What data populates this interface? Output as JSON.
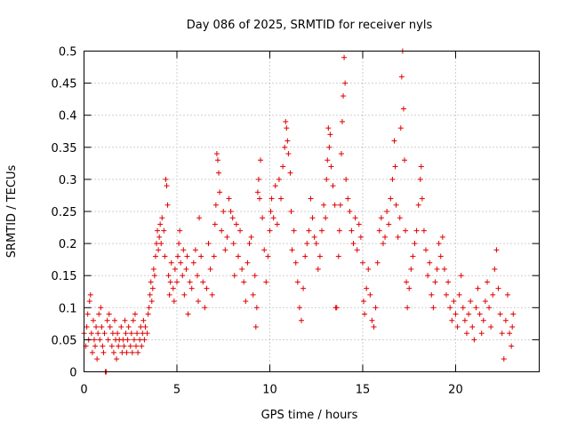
{
  "chart_data": {
    "type": "scatter",
    "title": "Day 086 of 2025, SRMTID for receiver nyls",
    "xlabel": "GPS time / hours",
    "ylabel": "SRMTID / TECUs",
    "xlim": [
      0,
      24.5
    ],
    "ylim": [
      0,
      0.5
    ],
    "xticks": [
      0,
      5,
      10,
      15,
      20
    ],
    "yticks": [
      0,
      0.05,
      0.1,
      0.15,
      0.2,
      0.25,
      0.3,
      0.35,
      0.4,
      0.45,
      0.5
    ],
    "xtick_labels": [
      "0",
      "5",
      "10",
      "15",
      "20"
    ],
    "ytick_labels": [
      "0",
      "0.05",
      "0.1",
      "0.15",
      "0.2",
      "0.25",
      "0.3",
      "0.35",
      "0.4",
      "0.45",
      "0.5"
    ],
    "grid": true,
    "marker": "+",
    "colors": {
      "points": "#e00000",
      "grid": "#a0a0a0",
      "axis": "#000000"
    },
    "series": [
      {
        "name": "SRMTID",
        "points": [
          [
            0.0,
            0.06
          ],
          [
            0.1,
            0.04
          ],
          [
            0.15,
            0.07
          ],
          [
            0.2,
            0.09
          ],
          [
            0.25,
            0.05
          ],
          [
            0.3,
            0.11
          ],
          [
            0.35,
            0.12
          ],
          [
            0.4,
            0.06
          ],
          [
            0.45,
            0.03
          ],
          [
            0.5,
            0.08
          ],
          [
            0.55,
            0.05
          ],
          [
            0.6,
            0.04
          ],
          [
            0.65,
            0.07
          ],
          [
            0.7,
            0.02
          ],
          [
            0.75,
            0.06
          ],
          [
            0.8,
            0.09
          ],
          [
            0.85,
            0.05
          ],
          [
            0.9,
            0.1
          ],
          [
            0.95,
            0.07
          ],
          [
            1.0,
            0.04
          ],
          [
            1.05,
            0.03
          ],
          [
            1.1,
            0.06
          ],
          [
            1.15,
            0.0
          ],
          [
            1.2,
            0.0
          ],
          [
            1.25,
            0.08
          ],
          [
            1.3,
            0.05
          ],
          [
            1.35,
            0.09
          ],
          [
            1.4,
            0.07
          ],
          [
            1.5,
            0.04
          ],
          [
            1.55,
            0.06
          ],
          [
            1.6,
            0.03
          ],
          [
            1.65,
            0.08
          ],
          [
            1.7,
            0.05
          ],
          [
            1.75,
            0.02
          ],
          [
            1.8,
            0.06
          ],
          [
            1.85,
            0.04
          ],
          [
            1.9,
            0.05
          ],
          [
            2.0,
            0.07
          ],
          [
            2.05,
            0.03
          ],
          [
            2.1,
            0.05
          ],
          [
            2.15,
            0.04
          ],
          [
            2.2,
            0.08
          ],
          [
            2.25,
            0.06
          ],
          [
            2.3,
            0.03
          ],
          [
            2.35,
            0.05
          ],
          [
            2.4,
            0.07
          ],
          [
            2.5,
            0.04
          ],
          [
            2.55,
            0.06
          ],
          [
            2.6,
            0.03
          ],
          [
            2.65,
            0.08
          ],
          [
            2.7,
            0.05
          ],
          [
            2.75,
            0.09
          ],
          [
            2.8,
            0.04
          ],
          [
            2.85,
            0.06
          ],
          [
            2.9,
            0.03
          ],
          [
            3.0,
            0.05
          ],
          [
            3.05,
            0.07
          ],
          [
            3.1,
            0.04
          ],
          [
            3.15,
            0.06
          ],
          [
            3.2,
            0.08
          ],
          [
            3.25,
            0.05
          ],
          [
            3.3,
            0.07
          ],
          [
            3.4,
            0.06
          ],
          [
            3.45,
            0.09
          ],
          [
            3.5,
            0.1
          ],
          [
            3.55,
            0.12
          ],
          [
            3.6,
            0.14
          ],
          [
            3.65,
            0.11
          ],
          [
            3.7,
            0.13
          ],
          [
            3.75,
            0.16
          ],
          [
            3.8,
            0.15
          ],
          [
            3.85,
            0.18
          ],
          [
            3.9,
            0.2
          ],
          [
            3.95,
            0.22
          ],
          [
            4.0,
            0.19
          ],
          [
            4.05,
            0.21
          ],
          [
            4.1,
            0.23
          ],
          [
            4.15,
            0.2
          ],
          [
            4.2,
            0.24
          ],
          [
            4.3,
            0.22
          ],
          [
            4.35,
            0.18
          ],
          [
            4.4,
            0.3
          ],
          [
            4.45,
            0.29
          ],
          [
            4.5,
            0.26
          ],
          [
            4.55,
            0.15
          ],
          [
            4.6,
            0.12
          ],
          [
            4.65,
            0.14
          ],
          [
            4.7,
            0.17
          ],
          [
            4.8,
            0.13
          ],
          [
            4.85,
            0.11
          ],
          [
            4.9,
            0.16
          ],
          [
            5.0,
            0.14
          ],
          [
            5.05,
            0.18
          ],
          [
            5.1,
            0.2
          ],
          [
            5.15,
            0.22
          ],
          [
            5.2,
            0.17
          ],
          [
            5.3,
            0.15
          ],
          [
            5.35,
            0.19
          ],
          [
            5.4,
            0.12
          ],
          [
            5.5,
            0.16
          ],
          [
            5.55,
            0.18
          ],
          [
            5.6,
            0.09
          ],
          [
            5.7,
            0.14
          ],
          [
            5.8,
            0.13
          ],
          [
            5.9,
            0.17
          ],
          [
            6.0,
            0.19
          ],
          [
            6.1,
            0.15
          ],
          [
            6.15,
            0.11
          ],
          [
            6.2,
            0.24
          ],
          [
            6.3,
            0.18
          ],
          [
            6.4,
            0.14
          ],
          [
            6.5,
            0.1
          ],
          [
            6.6,
            0.13
          ],
          [
            6.7,
            0.2
          ],
          [
            6.8,
            0.16
          ],
          [
            6.9,
            0.12
          ],
          [
            7.0,
            0.18
          ],
          [
            7.05,
            0.23
          ],
          [
            7.1,
            0.26
          ],
          [
            7.15,
            0.34
          ],
          [
            7.2,
            0.33
          ],
          [
            7.25,
            0.31
          ],
          [
            7.3,
            0.28
          ],
          [
            7.4,
            0.22
          ],
          [
            7.5,
            0.25
          ],
          [
            7.6,
            0.19
          ],
          [
            7.7,
            0.21
          ],
          [
            7.8,
            0.27
          ],
          [
            7.9,
            0.25
          ],
          [
            8.0,
            0.24
          ],
          [
            8.05,
            0.2
          ],
          [
            8.1,
            0.15
          ],
          [
            8.2,
            0.23
          ],
          [
            8.3,
            0.18
          ],
          [
            8.4,
            0.22
          ],
          [
            8.5,
            0.16
          ],
          [
            8.6,
            0.14
          ],
          [
            8.7,
            0.11
          ],
          [
            8.8,
            0.17
          ],
          [
            8.9,
            0.2
          ],
          [
            9.0,
            0.21
          ],
          [
            9.1,
            0.12
          ],
          [
            9.2,
            0.15
          ],
          [
            9.25,
            0.07
          ],
          [
            9.3,
            0.1
          ],
          [
            9.35,
            0.28
          ],
          [
            9.4,
            0.3
          ],
          [
            9.45,
            0.27
          ],
          [
            9.5,
            0.33
          ],
          [
            9.6,
            0.24
          ],
          [
            9.7,
            0.19
          ],
          [
            9.8,
            0.14
          ],
          [
            9.9,
            0.18
          ],
          [
            10.0,
            0.22
          ],
          [
            10.05,
            0.25
          ],
          [
            10.1,
            0.27
          ],
          [
            10.2,
            0.24
          ],
          [
            10.3,
            0.29
          ],
          [
            10.4,
            0.23
          ],
          [
            10.5,
            0.3
          ],
          [
            10.6,
            0.27
          ],
          [
            10.7,
            0.32
          ],
          [
            10.8,
            0.35
          ],
          [
            10.85,
            0.39
          ],
          [
            10.9,
            0.38
          ],
          [
            10.95,
            0.36
          ],
          [
            11.0,
            0.34
          ],
          [
            11.1,
            0.31
          ],
          [
            11.15,
            0.25
          ],
          [
            11.2,
            0.19
          ],
          [
            11.3,
            0.22
          ],
          [
            11.4,
            0.17
          ],
          [
            11.5,
            0.14
          ],
          [
            11.6,
            0.1
          ],
          [
            11.7,
            0.08
          ],
          [
            11.8,
            0.13
          ],
          [
            11.9,
            0.18
          ],
          [
            12.0,
            0.2
          ],
          [
            12.1,
            0.22
          ],
          [
            12.2,
            0.27
          ],
          [
            12.3,
            0.24
          ],
          [
            12.4,
            0.21
          ],
          [
            12.5,
            0.2
          ],
          [
            12.6,
            0.16
          ],
          [
            12.7,
            0.18
          ],
          [
            12.8,
            0.22
          ],
          [
            12.9,
            0.26
          ],
          [
            13.0,
            0.24
          ],
          [
            13.05,
            0.3
          ],
          [
            13.1,
            0.33
          ],
          [
            13.15,
            0.38
          ],
          [
            13.2,
            0.35
          ],
          [
            13.25,
            0.37
          ],
          [
            13.3,
            0.32
          ],
          [
            13.4,
            0.29
          ],
          [
            13.5,
            0.26
          ],
          [
            13.55,
            0.1
          ],
          [
            13.6,
            0.1
          ],
          [
            13.7,
            0.18
          ],
          [
            13.75,
            0.22
          ],
          [
            13.8,
            0.26
          ],
          [
            13.85,
            0.34
          ],
          [
            13.9,
            0.39
          ],
          [
            13.95,
            0.43
          ],
          [
            14.0,
            0.49
          ],
          [
            14.05,
            0.45
          ],
          [
            14.1,
            0.3
          ],
          [
            14.2,
            0.27
          ],
          [
            14.3,
            0.25
          ],
          [
            14.4,
            0.22
          ],
          [
            14.5,
            0.2
          ],
          [
            14.6,
            0.24
          ],
          [
            14.7,
            0.19
          ],
          [
            14.8,
            0.23
          ],
          [
            14.9,
            0.21
          ],
          [
            15.0,
            0.17
          ],
          [
            15.05,
            0.11
          ],
          [
            15.1,
            0.09
          ],
          [
            15.2,
            0.13
          ],
          [
            15.3,
            0.16
          ],
          [
            15.4,
            0.12
          ],
          [
            15.5,
            0.08
          ],
          [
            15.6,
            0.07
          ],
          [
            15.7,
            0.1
          ],
          [
            15.8,
            0.17
          ],
          [
            15.9,
            0.22
          ],
          [
            16.0,
            0.24
          ],
          [
            16.1,
            0.2
          ],
          [
            16.2,
            0.21
          ],
          [
            16.3,
            0.25
          ],
          [
            16.4,
            0.23
          ],
          [
            16.5,
            0.27
          ],
          [
            16.6,
            0.3
          ],
          [
            16.7,
            0.36
          ],
          [
            16.75,
            0.32
          ],
          [
            16.8,
            0.26
          ],
          [
            16.9,
            0.21
          ],
          [
            17.0,
            0.24
          ],
          [
            17.05,
            0.38
          ],
          [
            17.1,
            0.46
          ],
          [
            17.15,
            0.5
          ],
          [
            17.2,
            0.41
          ],
          [
            17.25,
            0.33
          ],
          [
            17.3,
            0.22
          ],
          [
            17.35,
            0.14
          ],
          [
            17.4,
            0.1
          ],
          [
            17.5,
            0.13
          ],
          [
            17.6,
            0.16
          ],
          [
            17.7,
            0.18
          ],
          [
            17.8,
            0.2
          ],
          [
            17.9,
            0.22
          ],
          [
            18.0,
            0.26
          ],
          [
            18.1,
            0.3
          ],
          [
            18.15,
            0.32
          ],
          [
            18.2,
            0.27
          ],
          [
            18.3,
            0.22
          ],
          [
            18.4,
            0.19
          ],
          [
            18.5,
            0.15
          ],
          [
            18.6,
            0.17
          ],
          [
            18.7,
            0.12
          ],
          [
            18.8,
            0.1
          ],
          [
            18.9,
            0.14
          ],
          [
            19.0,
            0.16
          ],
          [
            19.1,
            0.2
          ],
          [
            19.2,
            0.18
          ],
          [
            19.3,
            0.21
          ],
          [
            19.4,
            0.16
          ],
          [
            19.5,
            0.12
          ],
          [
            19.6,
            0.14
          ],
          [
            19.7,
            0.1
          ],
          [
            19.8,
            0.08
          ],
          [
            19.9,
            0.11
          ],
          [
            20.0,
            0.09
          ],
          [
            20.1,
            0.07
          ],
          [
            20.2,
            0.12
          ],
          [
            20.3,
            0.15
          ],
          [
            20.4,
            0.1
          ],
          [
            20.5,
            0.08
          ],
          [
            20.6,
            0.06
          ],
          [
            20.7,
            0.09
          ],
          [
            20.8,
            0.11
          ],
          [
            20.9,
            0.07
          ],
          [
            21.0,
            0.05
          ],
          [
            21.1,
            0.1
          ],
          [
            21.2,
            0.13
          ],
          [
            21.3,
            0.09
          ],
          [
            21.4,
            0.06
          ],
          [
            21.5,
            0.08
          ],
          [
            21.6,
            0.11
          ],
          [
            21.7,
            0.14
          ],
          [
            21.8,
            0.1
          ],
          [
            21.9,
            0.07
          ],
          [
            22.0,
            0.12
          ],
          [
            22.1,
            0.16
          ],
          [
            22.2,
            0.19
          ],
          [
            22.3,
            0.13
          ],
          [
            22.4,
            0.09
          ],
          [
            22.5,
            0.06
          ],
          [
            22.6,
            0.02
          ],
          [
            22.7,
            0.08
          ],
          [
            22.8,
            0.12
          ],
          [
            22.9,
            0.06
          ],
          [
            23.0,
            0.04
          ],
          [
            23.05,
            0.07
          ],
          [
            23.1,
            0.09
          ]
        ]
      }
    ]
  }
}
